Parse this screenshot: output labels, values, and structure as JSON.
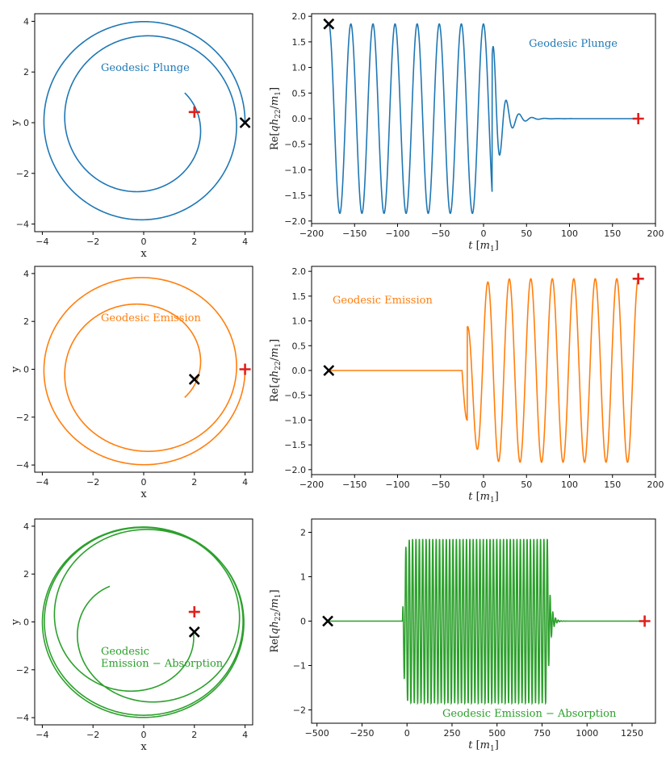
{
  "colors": {
    "plunge": "#1f77b4",
    "emission": "#ff7f0e",
    "absorption": "#2ca02c",
    "start_marker": "#000000",
    "end_marker": "#e0201b"
  },
  "markers": {
    "start": "×",
    "end": "+"
  },
  "chart_data": [
    {
      "id": "orbit-plunge",
      "type": "line",
      "family": "plunge",
      "xlabel": "x",
      "ylabel": "y",
      "xlim": [
        -4.3,
        4.3
      ],
      "ylim": [
        -4.3,
        4.3
      ],
      "xticks": [
        -4,
        -2,
        0,
        2,
        4
      ],
      "yticks": [
        -4,
        -2,
        0,
        2,
        4
      ],
      "annotation": [
        "Geodesic Plunge"
      ],
      "orbit": {
        "r_outer": 4.0,
        "r_inner": 2.0,
        "turns": 2.1,
        "start_angle_deg": 0,
        "sense": "ccw",
        "start_point": [
          4.0,
          0.0
        ],
        "end_point": [
          2.0,
          0.42
        ]
      }
    },
    {
      "id": "wave-plunge",
      "type": "line",
      "family": "plunge",
      "xlabel": "t [m1]",
      "ylabel": "Re[qh22/m1]",
      "xlim": [
        -200,
        200
      ],
      "ylim": [
        -2.05,
        2.05
      ],
      "xticks": [
        -200,
        -150,
        -100,
        -50,
        0,
        50,
        100,
        150,
        200
      ],
      "xtick_labels": [
        "−200",
        "−150",
        "−100",
        "−50",
        "0",
        "50",
        "100",
        "150",
        "200"
      ],
      "yticks": [
        -2.0,
        -1.5,
        -1.0,
        -0.5,
        0.0,
        0.5,
        1.0,
        1.5,
        2.0
      ],
      "ytick_labels": [
        "−2.0",
        "−1.5",
        "−1.0",
        "−0.5",
        "0.0",
        "0.5",
        "1.0",
        "1.5",
        "2.0"
      ],
      "annotation": [
        "Geodesic Plunge"
      ],
      "wave": {
        "t_start": -180,
        "t_end": 180,
        "kind": "plunge",
        "amplitude": 1.85,
        "period": 25.7,
        "phase_start_deg": 0,
        "merger_t": 10,
        "ringdown_tau": 11,
        "ringdown_period": 15,
        "start_point": [
          -180,
          1.85
        ],
        "end_point": [
          180,
          0.0
        ]
      }
    },
    {
      "id": "orbit-emission",
      "type": "line",
      "family": "emission",
      "xlabel": "x",
      "ylabel": "y",
      "xlim": [
        -4.3,
        4.3
      ],
      "ylim": [
        -4.3,
        4.3
      ],
      "xticks": [
        -4,
        -2,
        0,
        2,
        4
      ],
      "yticks": [
        -4,
        -2,
        0,
        2,
        4
      ],
      "annotation": [
        "Geodesic Emission"
      ],
      "orbit": {
        "r_outer": 4.0,
        "r_inner": 2.0,
        "turns": 2.1,
        "start_angle_deg": 0,
        "sense": "cw",
        "start_point": [
          2.0,
          -0.42
        ],
        "end_point": [
          4.0,
          0.0
        ]
      }
    },
    {
      "id": "wave-emission",
      "type": "line",
      "family": "emission",
      "xlabel": "t [m1]",
      "ylabel": "Re[qh22/m1]",
      "xlim": [
        -200,
        200
      ],
      "ylim": [
        -2.1,
        2.1
      ],
      "xticks": [
        -200,
        -150,
        -100,
        -50,
        0,
        50,
        100,
        150,
        200
      ],
      "xtick_labels": [
        "−200",
        "−150",
        "−100",
        "−50",
        "0",
        "50",
        "100",
        "150",
        "200"
      ],
      "yticks": [
        -2.0,
        -1.5,
        -1.0,
        -0.5,
        0.0,
        0.5,
        1.0,
        1.5,
        2.0
      ],
      "ytick_labels": [
        "−2.0",
        "−1.5",
        "−1.0",
        "−0.5",
        "0.0",
        "0.5",
        "1.0",
        "1.5",
        "2.0"
      ],
      "annotation": [
        "Geodesic Emission"
      ],
      "wave": {
        "t_start": -180,
        "t_end": 180,
        "kind": "emission",
        "amplitude": 1.85,
        "period": 25.0,
        "phase_end_deg": 0,
        "onset_t": -25,
        "start_point": [
          -180,
          0.0
        ],
        "end_point": [
          180,
          1.85
        ]
      }
    },
    {
      "id": "orbit-absorption",
      "type": "line",
      "family": "absorption",
      "xlabel": "x",
      "ylabel": "y",
      "xlim": [
        -4.3,
        4.3
      ],
      "ylim": [
        -4.3,
        4.3
      ],
      "xticks": [
        -4,
        -2,
        0,
        2,
        4
      ],
      "yticks": [
        -4,
        -2,
        0,
        2,
        4
      ],
      "annotation": [
        "Geodesic",
        "Emission − Absorption"
      ],
      "orbit": {
        "r_outer": 4.0,
        "r_inner": 2.0,
        "turns": 3.6,
        "sense": "both",
        "start_point": [
          2.0,
          -0.42
        ],
        "end_point": [
          2.0,
          0.42
        ]
      }
    },
    {
      "id": "wave-absorption",
      "type": "line",
      "family": "absorption",
      "xlabel": "t [m1]",
      "ylabel": "Re[qh22/m1]",
      "xlim": [
        -530,
        1380
      ],
      "ylim": [
        -2.3,
        2.3
      ],
      "xticks": [
        -500,
        -250,
        0,
        250,
        500,
        750,
        1000,
        1250
      ],
      "xtick_labels": [
        "−500",
        "−250",
        "0",
        "250",
        "500",
        "750",
        "1000",
        "1250"
      ],
      "yticks": [
        -2,
        -1,
        0,
        1,
        2
      ],
      "ytick_labels": [
        "−2",
        "−1",
        "0",
        "1",
        "2"
      ],
      "annotation": [
        "Geodesic Emission − Absorption"
      ],
      "wave": {
        "t_start": -440,
        "t_end": 1320,
        "kind": "absorption",
        "amplitude": 1.85,
        "period": 18.7,
        "onset_t": -25,
        "merger_t": 780,
        "ringdown_tau": 14,
        "ringdown_period": 15,
        "start_point": [
          -440,
          0.0
        ],
        "end_point": [
          1320,
          0.0
        ]
      }
    }
  ]
}
